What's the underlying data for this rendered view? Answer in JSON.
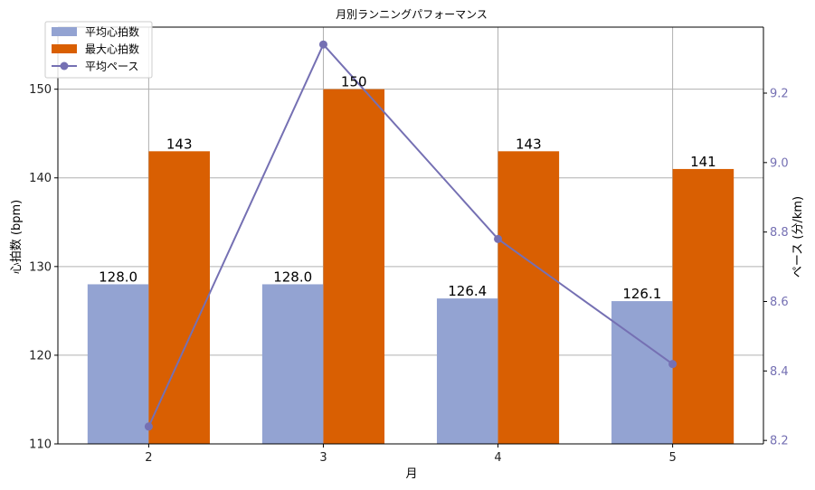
{
  "chart_data": {
    "type": "bar",
    "title": "月別ランニングパフォーマンス",
    "xlabel": "月",
    "ylabel": "心拍数 (bpm)",
    "y2label": "ペース (分/km)",
    "categories": [
      "2",
      "3",
      "4",
      "5"
    ],
    "ylim": [
      110,
      157
    ],
    "y2lim": [
      8.19,
      9.39
    ],
    "yticks": [
      110,
      120,
      130,
      140,
      150
    ],
    "y2ticks": [
      8.2,
      8.4,
      8.6,
      8.8,
      9.0,
      9.2
    ],
    "grid": true,
    "legend_position": "top-left",
    "series": [
      {
        "name": "平均心拍数",
        "type": "bar",
        "axis": "left",
        "values": [
          128.0,
          128.0,
          126.4,
          126.1
        ],
        "labels": [
          "128.0",
          "128.0",
          "126.4",
          "126.1"
        ],
        "color": "#93a3d2"
      },
      {
        "name": "最大心拍数",
        "type": "bar",
        "axis": "left",
        "values": [
          143,
          150,
          143,
          141
        ],
        "labels": [
          "143",
          "150",
          "143",
          "141"
        ],
        "color": "#d95f02"
      },
      {
        "name": "平均ペース",
        "type": "line",
        "axis": "right",
        "values": [
          8.24,
          9.34,
          8.78,
          8.42
        ],
        "color": "#7570b3"
      }
    ],
    "colors": {
      "axis2": "#7570b3",
      "grid": "#b0b0b0"
    }
  }
}
